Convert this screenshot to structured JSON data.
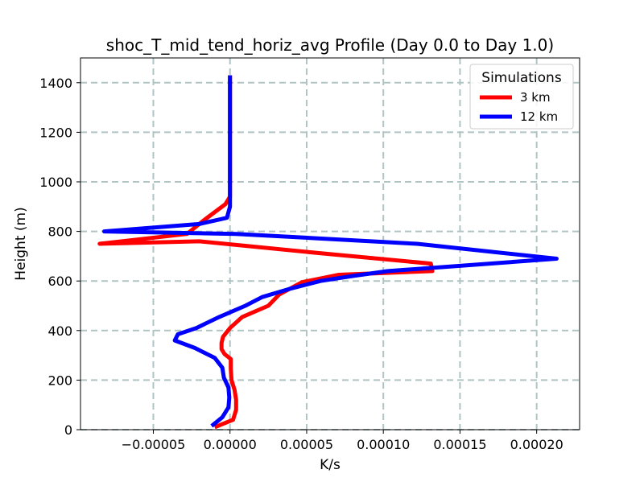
{
  "chart_data": {
    "type": "line",
    "title": "shoc_T_mid_tend_horiz_avg Profile (Day 0.0 to Day 1.0)",
    "xlabel": "K/s",
    "ylabel": "Height (m)",
    "xlim": [
      -9.75e-05,
      0.000228
    ],
    "ylim": [
      0,
      1500
    ],
    "x_ticks": [
      -5e-05,
      0,
      5e-05,
      0.0001,
      0.00015,
      0.0002
    ],
    "x_tick_labels": [
      "−0.00005",
      "0.00000",
      "0.00005",
      "0.00010",
      "0.00015",
      "0.00020"
    ],
    "y_ticks": [
      0,
      200,
      400,
      600,
      800,
      1000,
      1200,
      1400
    ],
    "y_tick_labels": [
      "0",
      "200",
      "400",
      "600",
      "800",
      "1000",
      "1200",
      "1400"
    ],
    "grid": true,
    "legend": {
      "title": "Simulations",
      "position": "top-right"
    },
    "series": [
      {
        "name": "3 km",
        "color": "#ff0000",
        "points": [
          [
            -1e-05,
            10
          ],
          [
            2e-06,
            40
          ],
          [
            4e-06,
            80
          ],
          [
            4e-06,
            120
          ],
          [
            3e-06,
            160
          ],
          [
            1e-06,
            200
          ],
          [
            5e-07,
            245
          ],
          [
            5e-07,
            285
          ],
          [
            -3.5e-06,
            305
          ],
          [
            -5.5e-06,
            325
          ],
          [
            -5.5e-06,
            350
          ],
          [
            -4.5e-06,
            375
          ],
          [
            0.0,
            410
          ],
          [
            8e-06,
            455
          ],
          [
            2.5e-05,
            500
          ],
          [
            3.2e-05,
            545
          ],
          [
            4.7e-05,
            595
          ],
          [
            7.1e-05,
            625
          ],
          [
            0.000132,
            640
          ],
          [
            0.000131,
            670
          ],
          [
            6.2e-05,
            710
          ],
          [
            -2e-05,
            760
          ],
          [
            -8.5e-05,
            750
          ],
          [
            -2.8e-05,
            790
          ],
          [
            -1.7e-05,
            845
          ],
          [
            -3e-06,
            910
          ],
          [
            0.0,
            940
          ],
          [
            0.0,
            1000
          ],
          [
            0.0,
            1200
          ],
          [
            0.0,
            1430
          ]
        ]
      },
      {
        "name": "12 km",
        "color": "#0000ff",
        "points": [
          [
            -1.2e-05,
            15
          ],
          [
            -5e-06,
            50
          ],
          [
            -1e-06,
            90
          ],
          [
            -5e-07,
            130
          ],
          [
            -1e-06,
            170
          ],
          [
            -4e-06,
            210
          ],
          [
            -5e-06,
            250
          ],
          [
            -1e-05,
            290
          ],
          [
            -2.3e-05,
            330
          ],
          [
            -3.6e-05,
            360
          ],
          [
            -3.4e-05,
            385
          ],
          [
            -2.2e-05,
            410
          ],
          [
            -7e-06,
            455
          ],
          [
            1e-05,
            500
          ],
          [
            2.1e-05,
            535
          ],
          [
            4e-05,
            570
          ],
          [
            5.9e-05,
            600
          ],
          [
            8e-05,
            620
          ],
          [
            0.000103,
            640
          ],
          [
            0.000213,
            690
          ],
          [
            0.000122,
            750
          ],
          [
            4e-06,
            790
          ],
          [
            -8.2e-05,
            800
          ],
          [
            -2e-05,
            830
          ],
          [
            -2e-06,
            855
          ],
          [
            0.0,
            900
          ],
          [
            0.0,
            1000
          ],
          [
            0.0,
            1200
          ],
          [
            0.0,
            1430
          ]
        ]
      }
    ]
  }
}
